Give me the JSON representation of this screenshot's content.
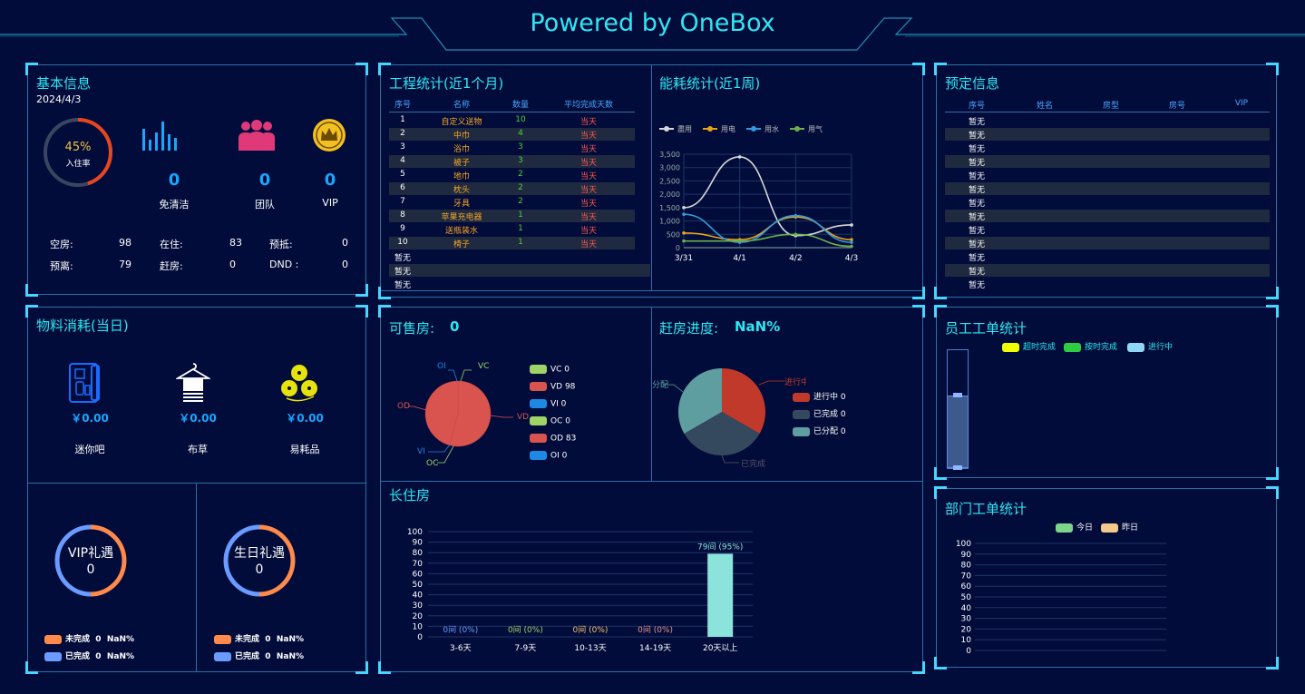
{
  "header": {
    "title": "Powered by OneBox"
  },
  "basic": {
    "title": "基本信息",
    "date": "2024/4/3",
    "occupancy": "45%",
    "occupancy_value": 45,
    "occupancy_label": "入住率",
    "kpis": [
      {
        "icon": "bar-chart-icon",
        "value": "0",
        "label": "免清洁"
      },
      {
        "icon": "group-icon",
        "value": "0",
        "label": "团队"
      },
      {
        "icon": "vip-crown-icon",
        "value": "0",
        "label": "VIP"
      }
    ],
    "stats": [
      {
        "label": "空房:",
        "value": "98"
      },
      {
        "label": "在住:",
        "value": "83"
      },
      {
        "label": "预抵:",
        "value": "0"
      },
      {
        "label": "预离:",
        "value": "79"
      },
      {
        "label": "赶房:",
        "value": "0"
      },
      {
        "label": "DND :",
        "value": "0"
      }
    ]
  },
  "engineering": {
    "title": "工程统计(近1个月)",
    "headers": [
      "序号",
      "名称",
      "数量",
      "平均完成天数"
    ],
    "rows": [
      [
        "1",
        "自定义送物",
        "10",
        "当天"
      ],
      [
        "2",
        "中巾",
        "4",
        "当天"
      ],
      [
        "3",
        "浴巾",
        "3",
        "当天"
      ],
      [
        "4",
        "被子",
        "3",
        "当天"
      ],
      [
        "5",
        "地巾",
        "2",
        "当天"
      ],
      [
        "6",
        "枕头",
        "2",
        "当天"
      ],
      [
        "7",
        "牙具",
        "2",
        "当天"
      ],
      [
        "8",
        "苹果充电器",
        "1",
        "当天"
      ],
      [
        "9",
        "送瓶装水",
        "1",
        "当天"
      ],
      [
        "10",
        "椅子",
        "1",
        "当天"
      ]
    ],
    "empty": [
      "暂无",
      "暂无",
      "暂无"
    ]
  },
  "energy": {
    "title": "能耗统计(近1周)",
    "chart_data": {
      "type": "line",
      "x": [
        "3/31",
        "4/1",
        "4/2",
        "4/3"
      ],
      "yticks": [
        "0",
        "500",
        "1,000",
        "1,500",
        "2,000",
        "2,500",
        "3,000",
        "3,500"
      ],
      "ylim": [
        0,
        3500
      ],
      "series": [
        {
          "name": "盡用",
          "color": "#d9d9d9",
          "values": [
            1500,
            3400,
            450,
            850
          ]
        },
        {
          "name": "用电",
          "color": "#e8a317",
          "values": [
            550,
            300,
            1150,
            300
          ]
        },
        {
          "name": "用水",
          "color": "#3399dd",
          "values": [
            1250,
            200,
            1200,
            200
          ]
        },
        {
          "name": "用气",
          "color": "#6ab04c",
          "values": [
            250,
            250,
            500,
            50
          ]
        }
      ]
    }
  },
  "booking": {
    "title": "预定信息",
    "headers": [
      "序号",
      "姓名",
      "房型",
      "房号",
      "VIP"
    ],
    "rows": [
      "暂无",
      "暂无",
      "暂无",
      "暂无",
      "暂无",
      "暂无",
      "暂无",
      "暂无",
      "暂无",
      "暂无",
      "暂无",
      "暂无",
      "暂无"
    ]
  },
  "materials": {
    "title": "物料消耗(当日)",
    "items": [
      {
        "icon": "minibar-icon",
        "value": "￥0.00",
        "label": "迷你吧"
      },
      {
        "icon": "linen-icon",
        "value": "￥0.00",
        "label": "布草"
      },
      {
        "icon": "consumables-icon",
        "value": "￥0.00",
        "label": "易耗品"
      }
    ],
    "gifts": [
      {
        "name": "VIP礼遇",
        "value": "0",
        "legend": [
          {
            "label": "未完成",
            "count": "0",
            "pct": "NaN%",
            "color": "#ff8a4c"
          },
          {
            "label": "已完成",
            "count": "0",
            "pct": "NaN%",
            "color": "#6b9bff"
          }
        ]
      },
      {
        "name": "生日礼遇",
        "value": "0",
        "legend": [
          {
            "label": "未完成",
            "count": "0",
            "pct": "NaN%",
            "color": "#ff8a4c"
          },
          {
            "label": "已完成",
            "count": "0",
            "pct": "NaN%",
            "color": "#6b9bff"
          }
        ]
      }
    ]
  },
  "sellable": {
    "title": "可售房:",
    "count": "0",
    "chart_data": {
      "type": "pie",
      "slices": [
        {
          "name": "VC",
          "value": 0,
          "color": "#a0d468"
        },
        {
          "name": "VD",
          "value": 98,
          "color": "#d9534f"
        },
        {
          "name": "VI",
          "value": 0,
          "color": "#1e88e5"
        },
        {
          "name": "OC",
          "value": 0,
          "color": "#a0d468"
        },
        {
          "name": "OD",
          "value": 83,
          "color": "#d9534f"
        },
        {
          "name": "OI",
          "value": 0,
          "color": "#1e88e5"
        }
      ]
    },
    "legend": [
      "VC 0",
      "VD 98",
      "VI 0",
      "OC 0",
      "OD 83",
      "OI 0"
    ]
  },
  "rush": {
    "title": "赶房进度:",
    "value": "NaN%",
    "chart_data": {
      "type": "pie",
      "slices": [
        {
          "name": "进行中",
          "value": 0,
          "color": "#c0392b"
        },
        {
          "name": "已完成",
          "value": 0,
          "color": "#34495e"
        },
        {
          "name": "已分配",
          "value": 0,
          "color": "#5f9ea0"
        }
      ]
    },
    "labels": [
      "进行中",
      "已完成",
      "分配"
    ],
    "legend": [
      "进行中 0",
      "已完成 0",
      "已分配 0"
    ]
  },
  "longstay": {
    "title": "长住房",
    "chart_data": {
      "type": "bar",
      "categories": [
        "3-6天",
        "7-9天",
        "10-13天",
        "14-19天",
        "20天以上"
      ],
      "values": [
        0,
        0,
        0,
        0,
        79
      ],
      "labels": [
        "0间 (0%)",
        "0间 (0%)",
        "0间 (0%)",
        "0间 (0%)",
        "79间 (95%)"
      ],
      "label_colors": [
        "#6b9bff",
        "#a0d468",
        "#f5c26b",
        "#e8918c",
        "#8be3dc"
      ],
      "ylim": [
        0,
        100
      ],
      "yticks": [
        "0",
        "10",
        "20",
        "30",
        "40",
        "50",
        "60",
        "70",
        "80",
        "90",
        "100"
      ]
    }
  },
  "staff": {
    "title": "员工工单统计",
    "legend": [
      {
        "label": "超时完成",
        "color": "#f0ff00"
      },
      {
        "label": "按时完成",
        "color": "#2ecc40"
      },
      {
        "label": "进行中",
        "color": "#8fd7f5"
      }
    ]
  },
  "dept": {
    "title": "部门工单统计",
    "legend": [
      {
        "label": "今日",
        "color": "#7ed58a"
      },
      {
        "label": "昨日",
        "color": "#f5c98a"
      }
    ],
    "chart_data": {
      "type": "bar",
      "ylim": [
        0,
        100
      ],
      "yticks": [
        "0",
        "10",
        "20",
        "30",
        "40",
        "50",
        "60",
        "70",
        "80",
        "90",
        "100"
      ]
    }
  }
}
